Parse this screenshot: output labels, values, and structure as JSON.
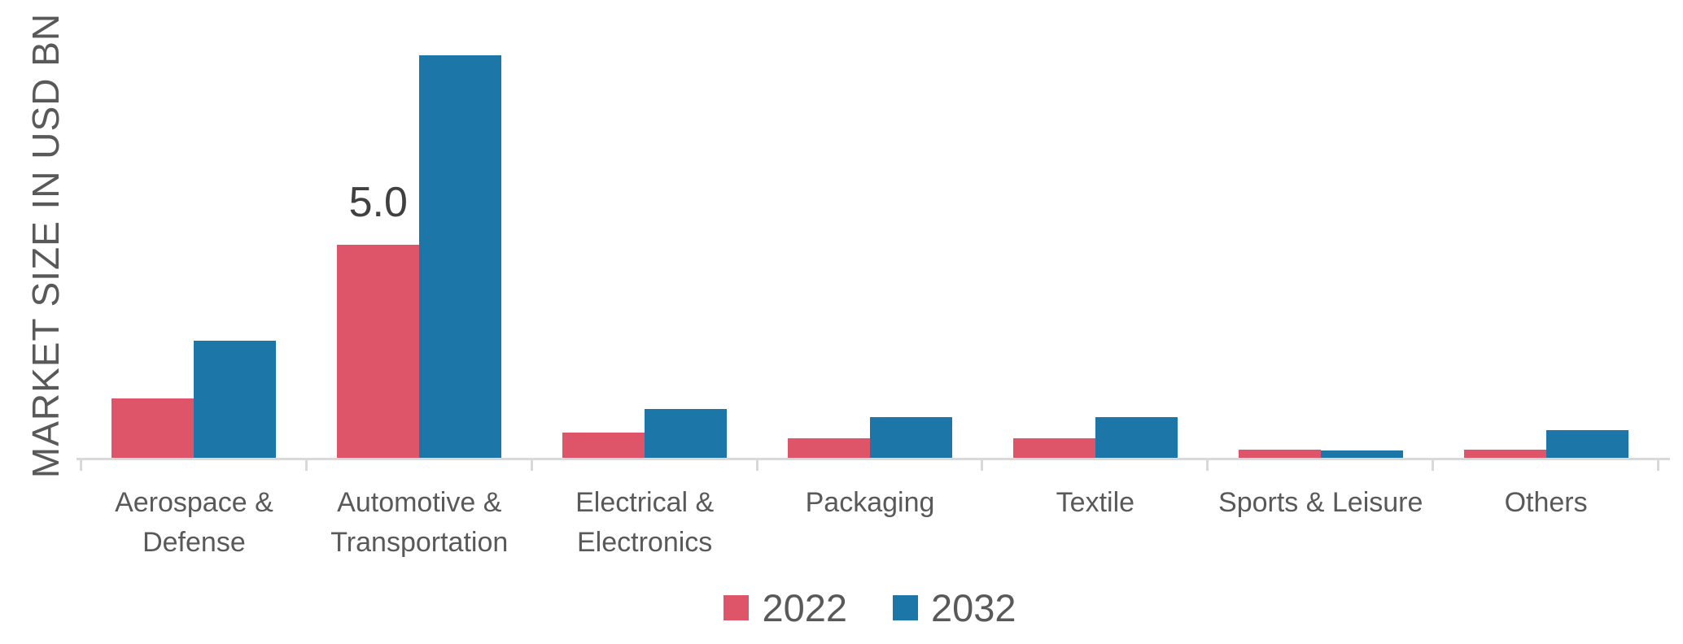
{
  "chart_data": {
    "type": "bar",
    "title": "",
    "xlabel": "",
    "ylabel": "MARKET SIZE IN USD BN",
    "categories": [
      "Aerospace & Defense",
      "Automotive & Transportation",
      "Electrical & Electronics",
      "Packaging",
      "Textile",
      "Sports & Leisure",
      "Others"
    ],
    "series": [
      {
        "name": "2022",
        "color": "#de5468",
        "values": [
          1.4,
          5.0,
          0.6,
          0.45,
          0.45,
          0.2,
          0.2
        ]
      },
      {
        "name": "2032",
        "color": "#1c76a7",
        "values": [
          2.75,
          9.45,
          1.15,
          0.95,
          0.95,
          0.18,
          0.65
        ]
      }
    ],
    "data_labels": [
      {
        "series": "2022",
        "category": "Automotive & Transportation",
        "text": "5.0"
      }
    ],
    "ylim": [
      0,
      10.7
    ],
    "grid": false,
    "legend_position": "bottom",
    "axis_line_color": "#d9d9d9",
    "axis_text_color": "#595959",
    "data_label_color": "#404040"
  },
  "legend": {
    "items": [
      {
        "label": "2022",
        "color": "#de5468"
      },
      {
        "label": "2032",
        "color": "#1c76a7"
      }
    ]
  }
}
